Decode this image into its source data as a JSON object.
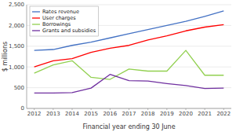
{
  "chart_data": {
    "type": "line",
    "xlabel": "Financial year ending 30 June",
    "ylabel": "$ millions",
    "x": [
      2012,
      2013,
      2014,
      2015,
      2016,
      2017,
      2018,
      2019,
      2020,
      2021,
      2022
    ],
    "series": [
      {
        "name": "Rates revenue",
        "color": "#4472C4",
        "values": [
          1400,
          1420,
          1520,
          1600,
          1700,
          1800,
          1900,
          2000,
          2100,
          2220,
          2350
        ]
      },
      {
        "name": "User charges",
        "color": "#FF0000",
        "values": [
          1000,
          1150,
          1200,
          1350,
          1450,
          1520,
          1650,
          1750,
          1870,
          1960,
          2020
        ]
      },
      {
        "name": "Borrowings",
        "color": "#92D050",
        "values": [
          850,
          1050,
          1150,
          750,
          700,
          950,
          900,
          900,
          1400,
          800,
          800
        ]
      },
      {
        "name": "Grants and subsidies",
        "color": "#7030A0",
        "values": [
          370,
          370,
          380,
          490,
          820,
          670,
          660,
          600,
          550,
          480,
          490
        ]
      }
    ],
    "xlim": [
      2011.6,
      2022.4
    ],
    "xticks": [
      2012,
      2013,
      2014,
      2015,
      2016,
      2017,
      2018,
      2019,
      2020,
      2021,
      2022
    ],
    "ylim": [
      0,
      2500
    ],
    "yticks": [
      0,
      500,
      {
        "value": 1000,
        "label": "1,000"
      },
      {
        "value": 1500,
        "label": "1,500"
      },
      {
        "value": 2000,
        "label": "2,000"
      },
      {
        "value": 2500,
        "label": "2,500"
      }
    ],
    "grid": true,
    "legend": "upper left"
  }
}
